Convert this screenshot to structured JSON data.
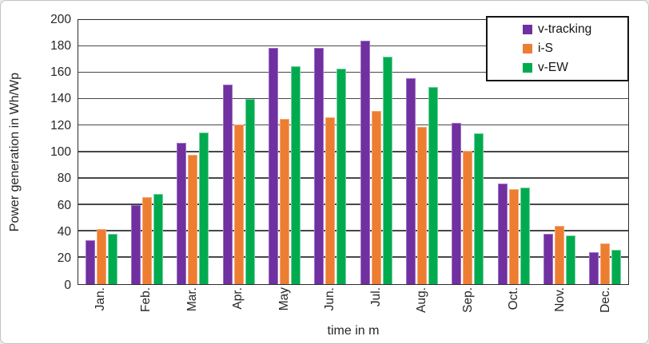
{
  "chart_data": {
    "type": "bar",
    "title": "",
    "categories": [
      "Jan.",
      "Feb.",
      "Mar.",
      "Apr.",
      "May",
      "Jun.",
      "Jul.",
      "Aug.",
      "Sep.",
      "Oct.",
      "Nov.",
      "Dec."
    ],
    "series": [
      {
        "name": "v-tracking",
        "color": "#7030A0",
        "edge_color": "#A06FC9",
        "values": [
          33,
          60,
          107,
          151,
          179,
          179,
          184,
          156,
          122,
          76,
          38,
          24
        ]
      },
      {
        "name": "i-S",
        "color": "#ED7D31",
        "edge_color": "#F4A977",
        "values": [
          42,
          66,
          98,
          121,
          125,
          126,
          131,
          119,
          101,
          72,
          44,
          31
        ]
      },
      {
        "name": "v-EW",
        "color": "#00AB4F",
        "edge_color": "#74D1A0",
        "values": [
          38,
          68,
          115,
          140,
          165,
          163,
          172,
          149,
          114,
          73,
          37,
          26
        ]
      }
    ],
    "xlabel": "time in m",
    "ylabel": "Power generation in Wh/Wp",
    "ylim": [
      0,
      200
    ],
    "ytick_step": 20,
    "yticks": [
      "0",
      "20",
      "40",
      "60",
      "80",
      "100",
      "120",
      "140",
      "160",
      "180",
      "200"
    ],
    "grid": "horizontal",
    "legend_position": "top-right"
  },
  "colors": {
    "background": "#ffffff",
    "outer_border": "#c3c3c3",
    "gridline": "#474747",
    "axis": "#2e2e2e",
    "text": "#262626",
    "legend_border": "#141414"
  }
}
